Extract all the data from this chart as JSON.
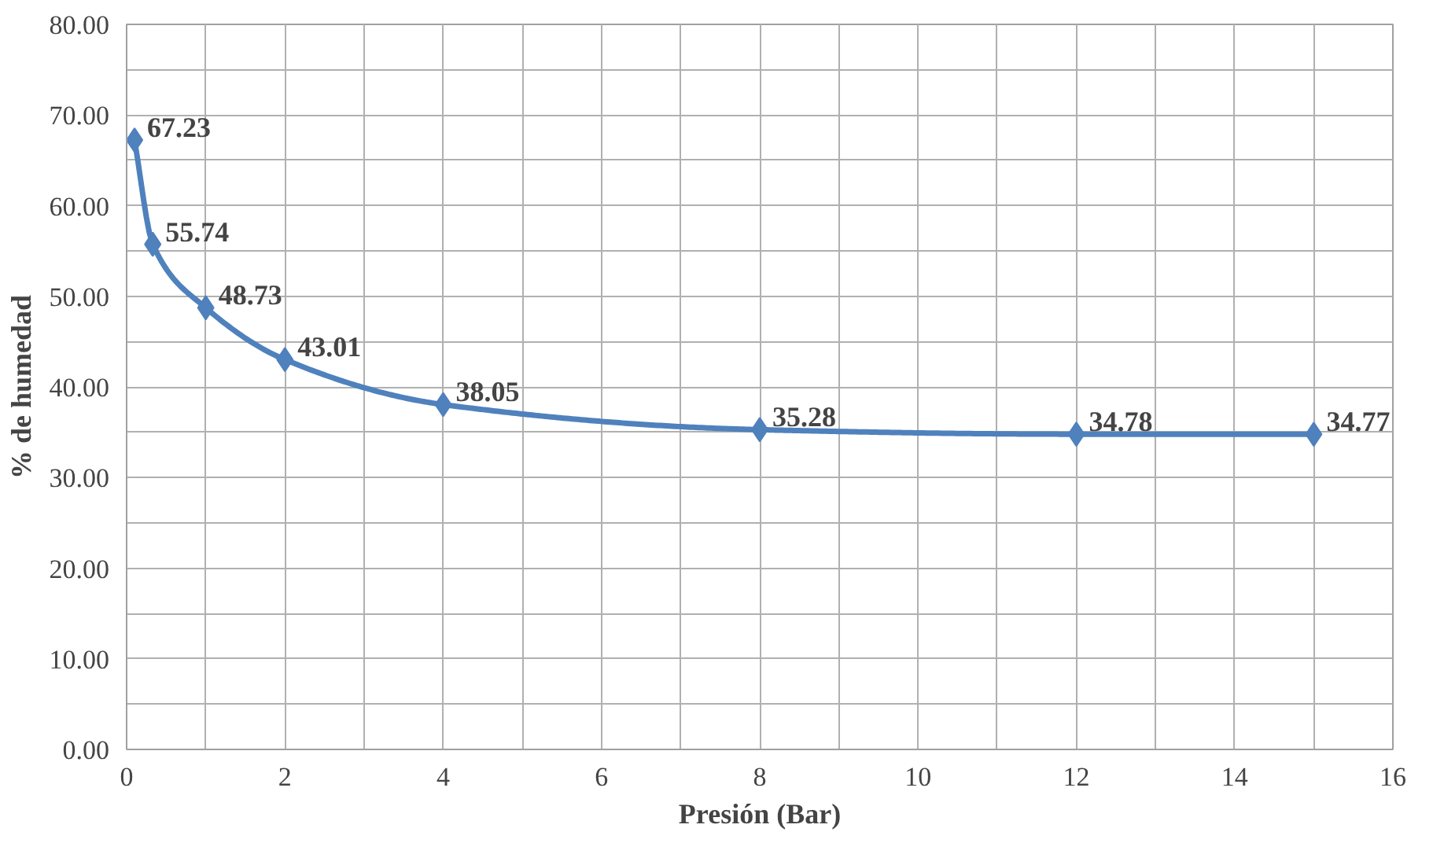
{
  "chart_data": {
    "type": "line",
    "xlabel": "Presión (Bar)",
    "ylabel": "% de humedad",
    "x": [
      0.1,
      0.33,
      1,
      2,
      4,
      8,
      12,
      15
    ],
    "series": [
      {
        "color": "#4f81bd",
        "values": [
          67.23,
          55.74,
          48.73,
          43.01,
          38.05,
          35.28,
          34.78,
          34.77
        ]
      }
    ],
    "xlim": [
      0,
      16
    ],
    "xticks": [
      0,
      2,
      4,
      6,
      8,
      10,
      12,
      14,
      16
    ],
    "ylim": [
      0,
      80
    ],
    "yticks": [
      {
        "value": 0,
        "label": "0.00"
      },
      {
        "value": 10,
        "label": "10.00"
      },
      {
        "value": 20,
        "label": "20.00"
      },
      {
        "value": 30,
        "label": "30.00"
      },
      {
        "value": 40,
        "label": "40.00"
      },
      {
        "value": 50,
        "label": "50.00"
      },
      {
        "value": 60,
        "label": "60.00"
      },
      {
        "value": 70,
        "label": "70.00"
      },
      {
        "value": 80,
        "label": "80.00"
      }
    ],
    "grid": true,
    "marker": "diamond",
    "line_style": "solid",
    "data_labels": true
  }
}
